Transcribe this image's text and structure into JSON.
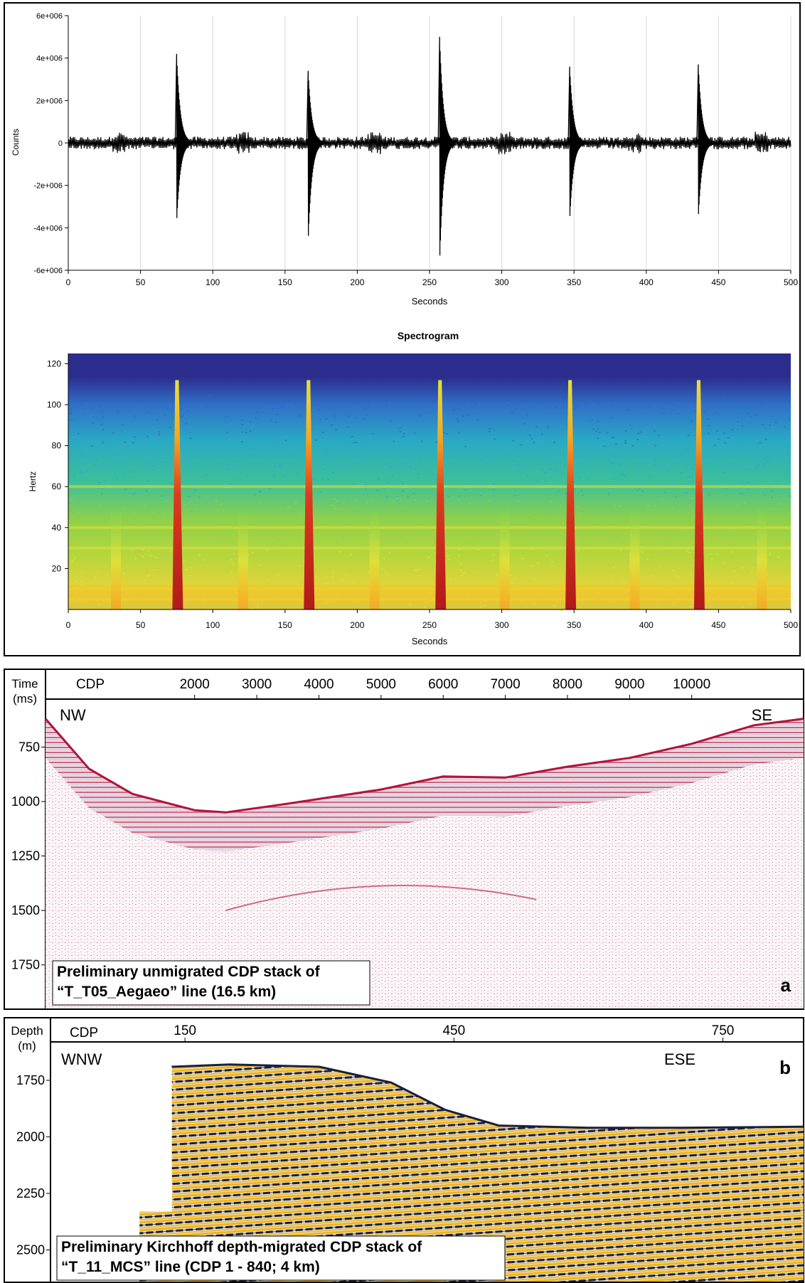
{
  "chart_data": [
    {
      "type": "line",
      "panel": "waveform",
      "title": "",
      "xlabel": "Seconds",
      "ylabel": "Counts",
      "xlim": [
        0,
        500
      ],
      "ylim": [
        -6000000,
        6000000
      ],
      "x_ticks": [
        0,
        50,
        100,
        150,
        200,
        250,
        300,
        350,
        400,
        450,
        500
      ],
      "y_ticks": [
        6000000,
        4000000,
        2000000,
        0,
        -2000000,
        -4000000,
        -6000000
      ],
      "y_tick_labels": [
        "6e+006",
        "4e+006",
        "2e+006",
        "0",
        "-2e+006",
        "-4e+006",
        "-6e+006"
      ],
      "grid": "vertical",
      "pulses": [
        {
          "x": 75,
          "max": 4200000,
          "min": -3800000
        },
        {
          "x": 166,
          "max": 3400000,
          "min": -4700000
        },
        {
          "x": 257,
          "max": 5000000,
          "min": -5700000
        },
        {
          "x": 347,
          "max": 3600000,
          "min": -3700000
        },
        {
          "x": 436,
          "max": 3700000,
          "min": -3600000
        }
      ],
      "weak_events_x": [
        35,
        121,
        212,
        302,
        392,
        480
      ],
      "noise_amplitude": 200000,
      "color": "#000000"
    },
    {
      "type": "heatmap",
      "panel": "spectrogram",
      "title": "Spectrogram",
      "xlabel": "Seconds",
      "ylabel": "Hertz",
      "xlim": [
        0,
        500
      ],
      "ylim": [
        0,
        125
      ],
      "x_ticks": [
        0,
        50,
        100,
        150,
        200,
        250,
        300,
        350,
        400,
        450,
        500
      ],
      "y_ticks": [
        20,
        40,
        60,
        80,
        100,
        120
      ],
      "strong_events_x": [
        75,
        166,
        257,
        347,
        436
      ],
      "strong_event_top_hz": 112,
      "weak_events_x": [
        33,
        121,
        212,
        302,
        392,
        480
      ],
      "weak_event_top_hz": 48,
      "noise_ceiling_hz": 105,
      "harmonic_bands_hz": [
        60,
        40,
        30,
        10,
        5
      ],
      "colors": [
        "#2b2c8c",
        "#2f64c8",
        "#29a9c8",
        "#3cc79a",
        "#8fd64a",
        "#e5e23a",
        "#f5a623",
        "#e03a1e",
        "#a11a1a"
      ]
    },
    {
      "type": "heatmap",
      "panel": "a",
      "title": "Preliminary unmigrated CDP stack of “T_T05_Aegaeo” line (16.5 km)",
      "top_label": "CDP",
      "left_label": [
        "Time",
        "(ms)"
      ],
      "x_ticks": [
        2000,
        3000,
        4000,
        5000,
        6000,
        7000,
        8000,
        9000,
        10000
      ],
      "y_ticks": [
        750,
        1000,
        1250,
        1500,
        1750
      ],
      "xlim": [
        -400,
        11800
      ],
      "ylim": [
        1950,
        530
      ],
      "seafloor_ms": [
        [
          -400,
          620
        ],
        [
          300,
          850
        ],
        [
          1000,
          965
        ],
        [
          2000,
          1040
        ],
        [
          2500,
          1050
        ],
        [
          3500,
          1010
        ],
        [
          5000,
          945
        ],
        [
          6000,
          885
        ],
        [
          7000,
          890
        ],
        [
          8000,
          840
        ],
        [
          9000,
          800
        ],
        [
          10000,
          735
        ],
        [
          11000,
          650
        ],
        [
          11800,
          620
        ]
      ],
      "direction_left": "NW",
      "direction_right": "SE",
      "panel_letter": "a",
      "colors": [
        "#b0143c",
        "#d27a9a",
        "#6b6fa8"
      ]
    },
    {
      "type": "heatmap",
      "panel": "b",
      "title": "Preliminary Kirchhoff depth-migrated CDP stack of “T_11_MCS” line (CDP 1 - 840; 4 km)",
      "top_label": "CDP",
      "left_label": [
        "Depth",
        "(m)"
      ],
      "x_ticks": [
        150,
        450,
        750
      ],
      "y_ticks": [
        1750,
        2000,
        2250,
        2500
      ],
      "xlim": [
        0,
        840
      ],
      "ylim": [
        2640,
        1580
      ],
      "seafloor_m": [
        [
          135,
          1690
        ],
        [
          200,
          1680
        ],
        [
          300,
          1690
        ],
        [
          380,
          1760
        ],
        [
          440,
          1880
        ],
        [
          500,
          1950
        ],
        [
          600,
          1960
        ],
        [
          700,
          1960
        ],
        [
          840,
          1955
        ]
      ],
      "data_left_cdp": 135,
      "direction_left": "WNW",
      "direction_right": "ESE",
      "panel_letter": "b",
      "colors": [
        "#f0b419",
        "#1a1f3c",
        "#e8e2cf"
      ]
    }
  ]
}
